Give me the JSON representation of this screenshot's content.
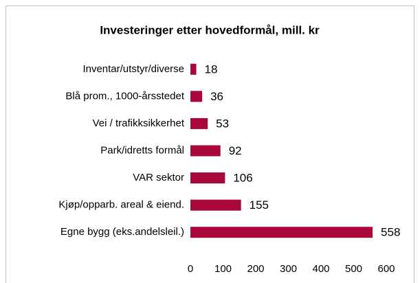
{
  "chart_data": {
    "type": "hbar",
    "title": "Investeringer etter hovedformål, mill. kr",
    "categories": [
      "Inventar/utstyr/diverse",
      "Blå prom., 1000-årsstedet",
      "Vei / trafikksikkerhet",
      "Park/idretts formål",
      "VAR sektor",
      "Kjøp/opparb. areal & eiend.",
      "Egne bygg (eks.andelsleil.)"
    ],
    "values": [
      18,
      36,
      53,
      92,
      106,
      155,
      558
    ],
    "color": "#a8083a",
    "xlim": [
      0,
      600
    ],
    "xticks": [
      0,
      100,
      200,
      300,
      400,
      500,
      600
    ],
    "grid": false
  }
}
